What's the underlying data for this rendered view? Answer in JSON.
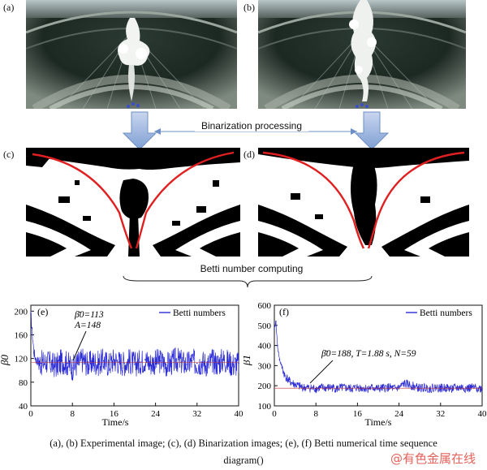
{
  "panels": {
    "a_label": "(a)",
    "b_label": "(b)",
    "c_label": "(c)",
    "d_label": "(d)"
  },
  "process": {
    "binarization_label": "Binarization processing",
    "betti_label": "Betti number computing"
  },
  "charts": [
    {
      "panel_label": "(e)",
      "legend": "Betti numbers",
      "ylabel": "β0",
      "xlabel": "Time/s",
      "annotation_mean": "β̄0=113",
      "annotation_amp": "A=148",
      "color_series": "#2a2ad6"
    },
    {
      "panel_label": "(f)",
      "legend": "Betti numbers",
      "ylabel": "β1",
      "xlabel": "Time/s",
      "annotation_mean": "β̄0=188, T=1.88 s, N=59",
      "color_series": "#2a2ad6"
    }
  ],
  "chart_data": [
    {
      "type": "line",
      "title": "",
      "xlabel": "Time/s",
      "ylabel": "β0",
      "xlim": [
        0,
        40
      ],
      "ylim": [
        40,
        210
      ],
      "xticks": [
        0,
        8,
        16,
        24,
        32,
        40
      ],
      "yticks": [
        40,
        80,
        120,
        160,
        200
      ],
      "legend": "top-right",
      "series": [
        {
          "name": "Betti numbers",
          "x": [
            0,
            0.3,
            0.6,
            1,
            2,
            3,
            4,
            5,
            6,
            7,
            8,
            9,
            10,
            11,
            12,
            13,
            14,
            15,
            16,
            17,
            18,
            19,
            20,
            21,
            22,
            23,
            24,
            25,
            26,
            27,
            28,
            29,
            30,
            31,
            32,
            33,
            34,
            35,
            36,
            37,
            38,
            39,
            40
          ],
          "y": [
            195,
            160,
            130,
            118,
            112,
            115,
            110,
            108,
            116,
            112,
            104,
            112,
            118,
            110,
            114,
            112,
            116,
            110,
            118,
            114,
            112,
            116,
            110,
            114,
            118,
            112,
            114,
            116,
            110,
            112,
            118,
            114,
            110,
            116,
            112,
            114,
            110,
            116,
            112,
            118,
            114,
            110,
            112
          ]
        }
      ],
      "annotations": [
        "β̄0=113",
        "A=148"
      ]
    },
    {
      "type": "line",
      "title": "",
      "xlabel": "Time/s",
      "ylabel": "β1",
      "xlim": [
        0,
        40
      ],
      "ylim": [
        100,
        600
      ],
      "xticks": [
        0,
        8,
        16,
        24,
        32,
        40
      ],
      "yticks": [
        100,
        200,
        300,
        400,
        500,
        600
      ],
      "legend": "top-right",
      "series": [
        {
          "name": "Betti numbers",
          "x": [
            0,
            0.3,
            0.6,
            1,
            1.5,
            2,
            3,
            4,
            5,
            6,
            7,
            8,
            9,
            10,
            11,
            12,
            13,
            14,
            15,
            16,
            17,
            18,
            19,
            20,
            21,
            22,
            23,
            24,
            25,
            26,
            27,
            28,
            29,
            30,
            31,
            32,
            33,
            34,
            35,
            36,
            37,
            38,
            39,
            40
          ],
          "y": [
            480,
            520,
            400,
            330,
            290,
            250,
            220,
            205,
            195,
            190,
            188,
            185,
            190,
            188,
            192,
            185,
            190,
            188,
            185,
            192,
            188,
            186,
            190,
            185,
            188,
            192,
            186,
            190,
            210,
            205,
            195,
            188,
            190,
            186,
            192,
            188,
            190,
            186,
            188,
            192,
            186,
            190,
            188,
            186
          ]
        }
      ],
      "annotations": [
        "β̄0=188, T=1.88 s, N=59"
      ]
    }
  ],
  "caption": {
    "line1": "(a), (b) Experimental image; (c), (d) Binarization images; (e), (f) Betti numerical time sequence",
    "line2": "diagram()"
  },
  "watermark": "@有色金属在线"
}
